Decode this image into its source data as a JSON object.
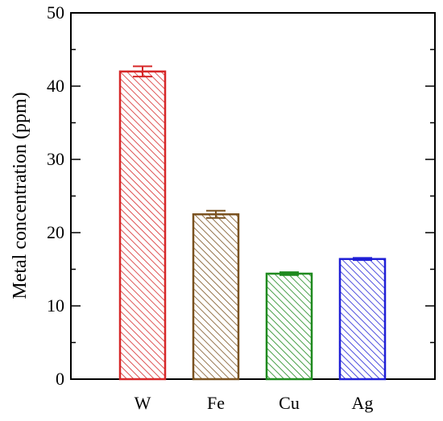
{
  "chart_data": {
    "type": "bar",
    "title": "",
    "xlabel": "",
    "ylabel": "Metal concentration (ppm)",
    "ylim": [
      0,
      50
    ],
    "yticks": [
      0,
      10,
      20,
      30,
      40,
      50
    ],
    "categories": [
      "W",
      "Fe",
      "Cu",
      "Ag"
    ],
    "values": [
      42.0,
      22.5,
      14.4,
      16.4
    ],
    "errors": [
      0.7,
      0.5,
      0.2,
      0.15
    ],
    "colors": [
      "#d62728",
      "#7a5220",
      "#1f8a1f",
      "#1f1fd6"
    ],
    "hatch": "diagonal",
    "grid": false,
    "legend": "none"
  }
}
